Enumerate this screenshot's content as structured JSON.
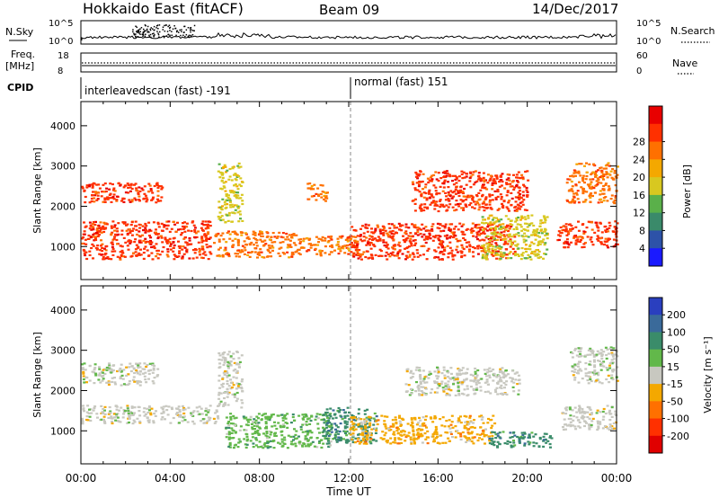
{
  "header": {
    "radar": "Hokkaido East (fitACF)",
    "beam": "Beam 09",
    "date": "14/Dec/2017"
  },
  "noise_panel": {
    "left_label": "N.Sky",
    "left_ticks": [
      "10^5",
      "10^0"
    ],
    "right_ticks": [
      "10^5",
      "10^0"
    ],
    "right_label": "N.Search",
    "right_style": "dotted"
  },
  "freq_panel": {
    "left_label_1": "Freq.",
    "left_label_2": "[MHz]",
    "left_ticks": [
      "18",
      "8"
    ],
    "right_ticks": [
      "60",
      "0"
    ],
    "right_label": "Nave",
    "right_style": "dotted"
  },
  "cpid_panel": {
    "label": "CPID",
    "modes": [
      {
        "name": "interleavedscan (fast) -191",
        "start_hour": 0,
        "end_hour": 12
      },
      {
        "name": "normal (fast) 151",
        "start_hour": 12,
        "end_hour": 24
      }
    ]
  },
  "x_axis": {
    "label": "Time UT",
    "ticks": [
      "00:00",
      "04:00",
      "08:00",
      "12:00",
      "16:00",
      "20:00",
      "00:00"
    ],
    "range_hours": [
      0,
      24
    ]
  },
  "power_colorbar": {
    "label": "Power [dB]",
    "ticks": [
      "4",
      "8",
      "12",
      "16",
      "20",
      "24",
      "28"
    ],
    "colors": [
      "#1a1aff",
      "#2d52a8",
      "#3a8a6a",
      "#5ab04a",
      "#d8c820",
      "#f4a800",
      "#ff7000",
      "#ff3000",
      "#e80000"
    ]
  },
  "velocity_colorbar": {
    "label": "Velocity [m s⁻¹]",
    "ticks": [
      "200",
      "100",
      "50",
      "15",
      "-15",
      "-50",
      "-100",
      "-200"
    ],
    "colors": [
      "#2a3fbf",
      "#3a6a9a",
      "#3a8c6a",
      "#62b84a",
      "#c8c8c0",
      "#f4a800",
      "#ff7000",
      "#ff3000",
      "#e00000"
    ]
  },
  "chart_data": [
    {
      "type": "heatmap",
      "name": "power",
      "ylabel": "Slant Range [km]",
      "yticks": [
        1000,
        2000,
        3000,
        4000
      ],
      "ylim": [
        180,
        4600
      ],
      "xlim": [
        0,
        24
      ],
      "grid": "dashed-at-12UT",
      "regions": [
        {
          "x": [
            0.0,
            5.8
          ],
          "y": [
            700,
            1650
          ],
          "v": 27
        },
        {
          "x": [
            0.0,
            3.6
          ],
          "y": [
            2100,
            2600
          ],
          "v": 25
        },
        {
          "x": [
            5.9,
            9.6
          ],
          "y": [
            750,
            1400
          ],
          "v": 23
        },
        {
          "x": [
            6.1,
            7.2
          ],
          "y": [
            1600,
            3100
          ],
          "v": 17
        },
        {
          "x": [
            9.6,
            12.3
          ],
          "y": [
            800,
            1300
          ],
          "v": 22
        },
        {
          "x": [
            10.1,
            11.0
          ],
          "y": [
            2150,
            2600
          ],
          "v": 24
        },
        {
          "x": [
            12.0,
            19.4
          ],
          "y": [
            700,
            1600
          ],
          "v": 27
        },
        {
          "x": [
            14.8,
            20.0
          ],
          "y": [
            1900,
            2900
          ],
          "v": 25
        },
        {
          "x": [
            17.9,
            20.9
          ],
          "y": [
            700,
            1800
          ],
          "v": 16
        },
        {
          "x": [
            21.3,
            24.0
          ],
          "y": [
            1000,
            1650
          ],
          "v": 27
        },
        {
          "x": [
            21.7,
            24.0
          ],
          "y": [
            2100,
            3100
          ],
          "v": 24
        }
      ]
    },
    {
      "type": "heatmap",
      "name": "velocity",
      "ylabel": "Slant Range [km]",
      "yticks": [
        1000,
        2000,
        3000,
        4000
      ],
      "ylim": [
        180,
        4600
      ],
      "xlim": [
        0,
        24
      ],
      "grid": "dashed-at-12UT",
      "regions": [
        {
          "x": [
            0.0,
            6.1
          ],
          "y": [
            1200,
            1650
          ],
          "v": 0
        },
        {
          "x": [
            0.0,
            3.4
          ],
          "y": [
            2150,
            2700
          ],
          "v": 0
        },
        {
          "x": [
            6.1,
            7.2
          ],
          "y": [
            1600,
            3000
          ],
          "v": 0
        },
        {
          "x": [
            6.4,
            11.2
          ],
          "y": [
            600,
            1450
          ],
          "v": 40
        },
        {
          "x": [
            10.8,
            13.2
          ],
          "y": [
            700,
            1600
          ],
          "v": 55
        },
        {
          "x": [
            12.0,
            18.5
          ],
          "y": [
            700,
            1400
          ],
          "v": -30
        },
        {
          "x": [
            14.5,
            19.6
          ],
          "y": [
            1900,
            2600
          ],
          "v": 0
        },
        {
          "x": [
            18.2,
            21.1
          ],
          "y": [
            600,
            1000
          ],
          "v": 60
        },
        {
          "x": [
            21.5,
            24.0
          ],
          "y": [
            1050,
            1650
          ],
          "v": 0
        },
        {
          "x": [
            21.9,
            24.0
          ],
          "y": [
            2200,
            3100
          ],
          "v": 0
        }
      ]
    }
  ]
}
